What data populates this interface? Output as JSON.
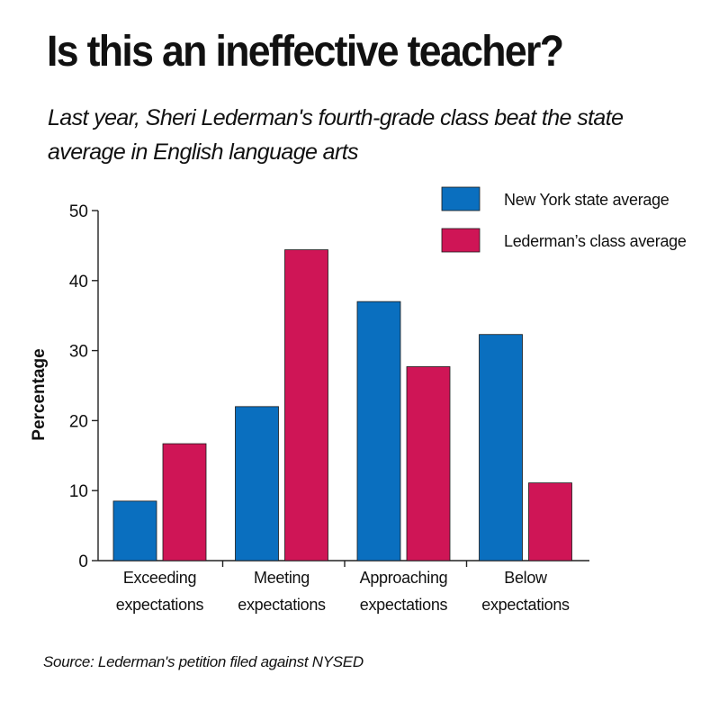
{
  "header": {
    "title": "Is this an ineffective teacher?",
    "subtitle": "Last year, Sheri Lederman's fourth-grade class beat the state average in English language arts"
  },
  "footer": {
    "source": "Source: Lederman's petition filed against NYSED"
  },
  "chart_data": {
    "type": "bar",
    "title": "Is this an ineffective teacher?",
    "subtitle": "Last year, Sheri Lederman's fourth-grade class beat the state average in English language arts",
    "xlabel": "",
    "ylabel": "Percentage",
    "ylim": [
      0,
      50
    ],
    "yticks": [
      0,
      10,
      20,
      30,
      40,
      50
    ],
    "grid": false,
    "legend_position": "top-right",
    "categories": [
      [
        "Exceeding",
        "expectations"
      ],
      [
        "Meeting",
        "expectations"
      ],
      [
        "Approaching",
        "expectations"
      ],
      [
        "Below",
        "expectations"
      ]
    ],
    "series": [
      {
        "name": "New York state average",
        "color": "#0a6fbf",
        "values": [
          8.5,
          22,
          37,
          32.3
        ]
      },
      {
        "name": "Lederman’s class average",
        "color": "#cf1556",
        "values": [
          16.7,
          44.4,
          27.7,
          11.1
        ]
      }
    ]
  }
}
